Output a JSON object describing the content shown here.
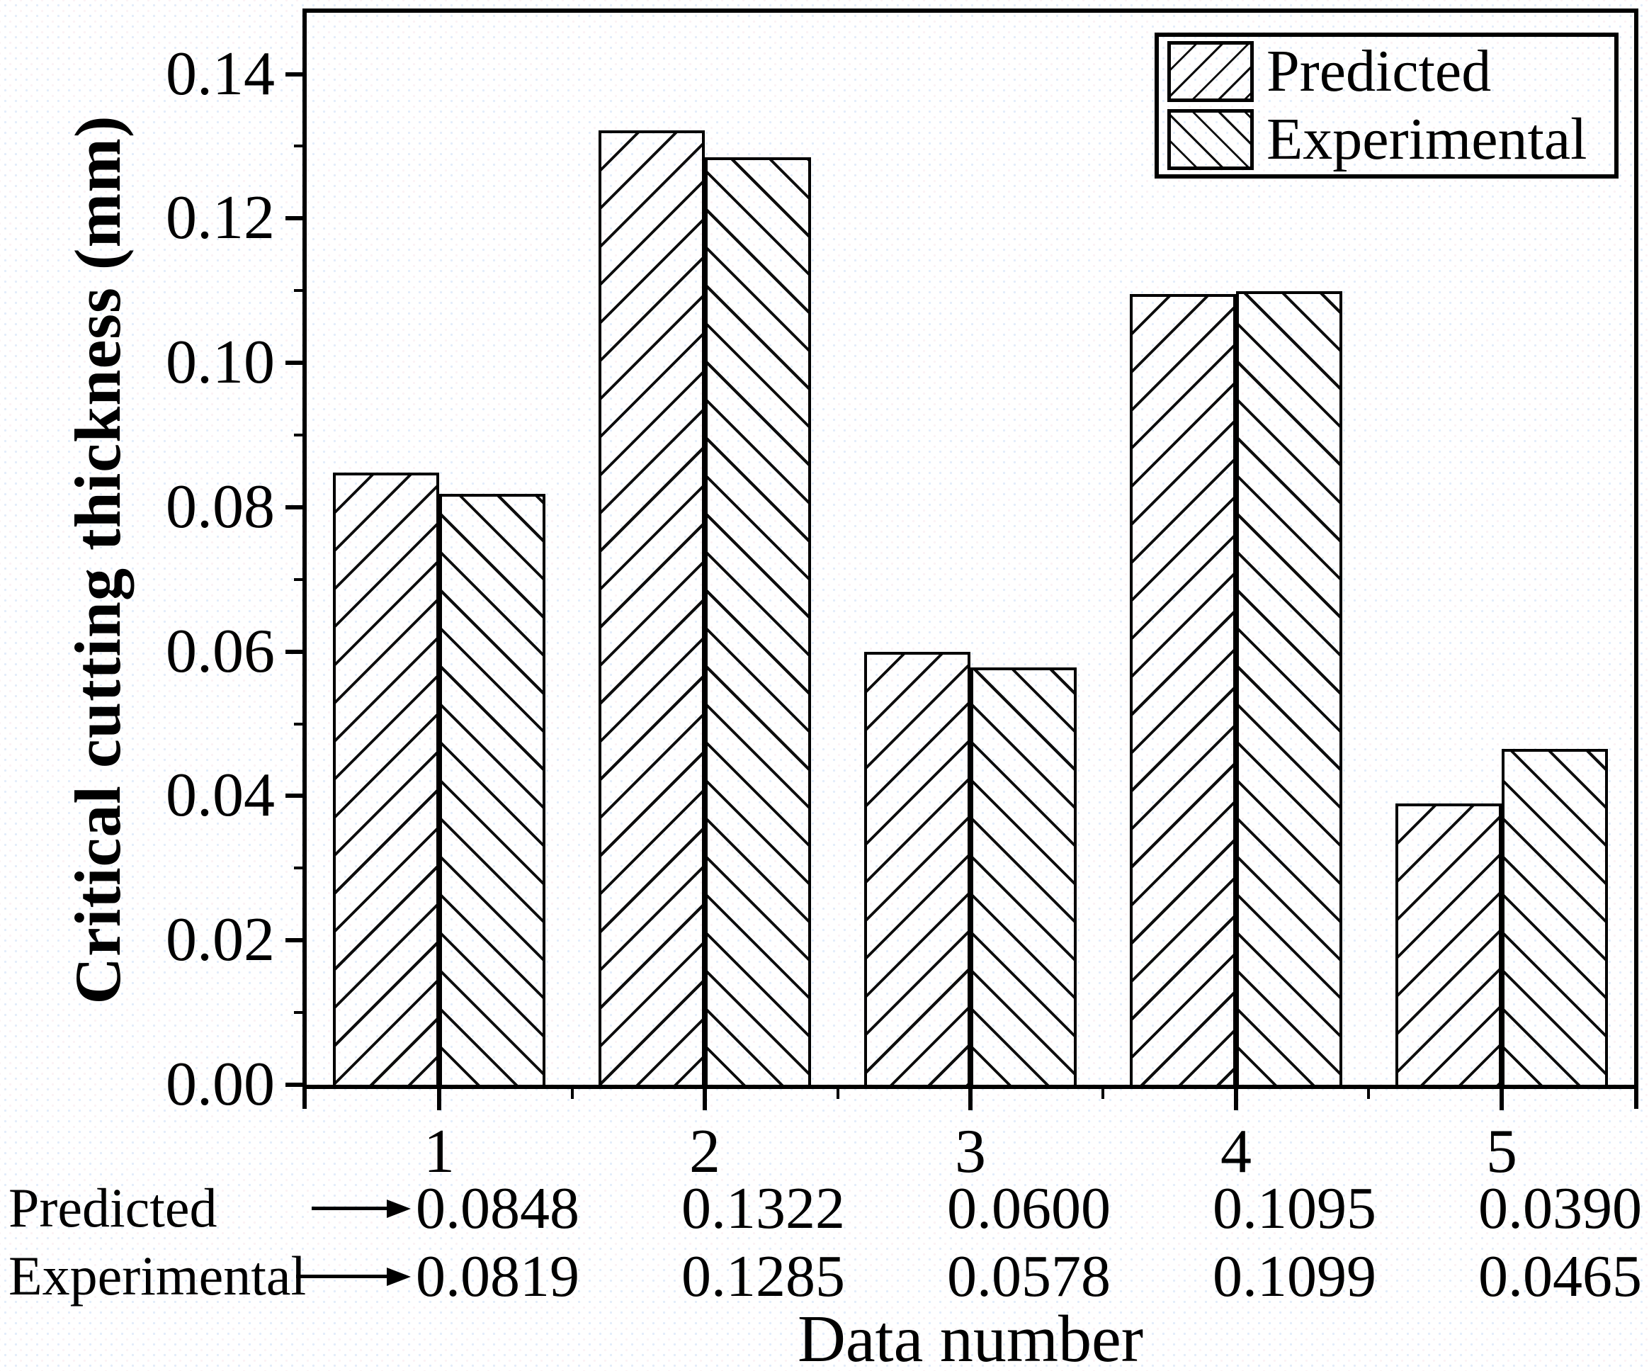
{
  "chart_data": {
    "type": "bar",
    "title": "",
    "xlabel": "Data number",
    "ylabel": "Critical cutting thickness (mm)",
    "categories": [
      "1",
      "2",
      "3",
      "4",
      "5"
    ],
    "series": [
      {
        "name": "Predicted",
        "hatch": "forward-diagonal",
        "values": [
          0.0848,
          0.1322,
          0.06,
          0.1095,
          0.039
        ]
      },
      {
        "name": "Experimental",
        "hatch": "backward-diagonal",
        "values": [
          0.0819,
          0.1285,
          0.0578,
          0.1099,
          0.0465
        ]
      }
    ],
    "ylim": [
      0,
      0.1485
    ],
    "ytick_step": 0.02,
    "ytick_labels": [
      "0.00",
      "0.02",
      "0.04",
      "0.06",
      "0.08",
      "0.10",
      "0.12",
      "0.14"
    ],
    "legend_position": "top-right",
    "grid": false,
    "bar_fill": "#ffffff",
    "hatch_color": "#000000",
    "frame_color": "#000000"
  },
  "table": {
    "rows": [
      {
        "label": "Predicted",
        "values": [
          "0.0848",
          "0.1322",
          "0.0600",
          "0.1095",
          "0.0390"
        ]
      },
      {
        "label": "Experimental",
        "values": [
          "0.0819",
          "0.1285",
          "0.0578",
          "0.1099",
          "0.0465"
        ]
      }
    ]
  }
}
